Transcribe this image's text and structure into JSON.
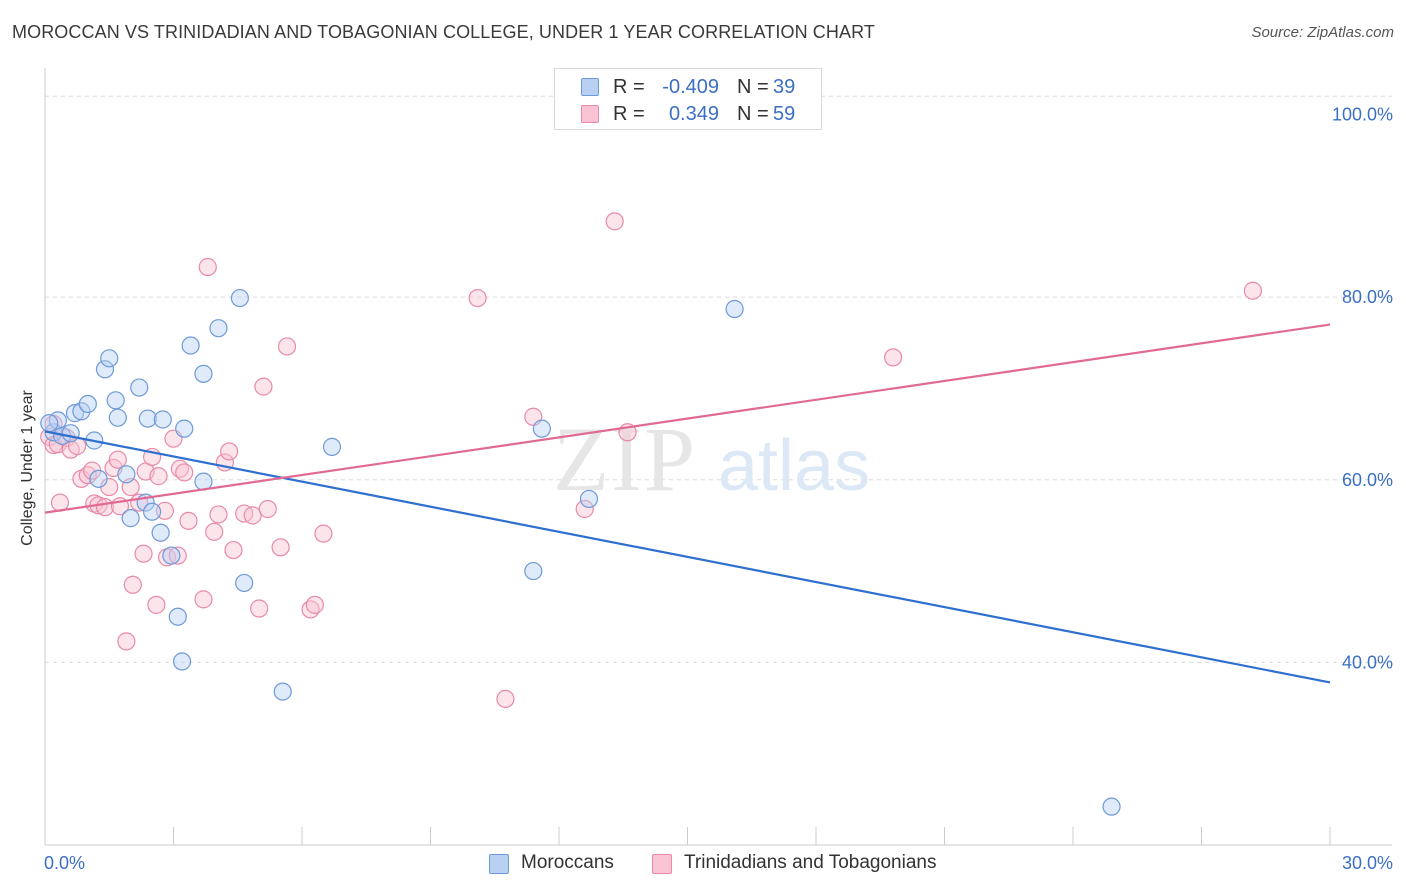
{
  "title": "MOROCCAN VS TRINIDADIAN AND TOBAGONIAN COLLEGE, UNDER 1 YEAR CORRELATION CHART",
  "source": "Source: ZipAtlas.com",
  "watermark": {
    "zip": "ZIP",
    "atlas": "atlas"
  },
  "colors": {
    "blue_fill": "#b8d1f3",
    "blue_stroke": "#6f9ad8",
    "blue_line": "#2f6fd0",
    "pink_fill": "#f9c3d3",
    "pink_stroke": "#e88aa8",
    "pink_line": "#e06a93",
    "axis_text": "#3b6fc4",
    "grid": "#dcdcdc"
  },
  "stats": [
    {
      "r_label": "R =",
      "r_value": "-0.409",
      "n_label": "N =",
      "n_value": "39",
      "swatch": "blue"
    },
    {
      "r_label": "R =",
      "r_value": "0.349",
      "n_label": "N =",
      "n_value": "59",
      "swatch": "pink"
    }
  ],
  "legend": [
    {
      "label": "Moroccans",
      "swatch": "blue"
    },
    {
      "label": "Trinidadians and Tobagonians",
      "swatch": "pink"
    }
  ],
  "chart_data": {
    "type": "scatter",
    "title": "MOROCCAN VS TRINIDADIAN AND TOBAGONIAN COLLEGE, UNDER 1 YEAR CORRELATION CHART",
    "xlabel": "",
    "ylabel": "College, Under 1 year",
    "xlim": [
      0,
      30
    ],
    "ylim": [
      20,
      104
    ],
    "x_tick_labels": [
      {
        "value": 0,
        "label": "0.0%"
      },
      {
        "value": 30,
        "label": "30.0%"
      }
    ],
    "y_tick_labels": [
      {
        "value": 40,
        "label": "40.0%"
      },
      {
        "value": 60,
        "label": "60.0%"
      },
      {
        "value": 80,
        "label": "80.0%"
      },
      {
        "value": 100,
        "label": "100.0%"
      }
    ],
    "gridlines_y": [
      40,
      60,
      80,
      102
    ],
    "series": [
      {
        "name": "Moroccans",
        "color": "blue",
        "trend": {
          "x": [
            0,
            30
          ],
          "y": [
            65.3,
            37.8
          ]
        },
        "points": [
          [
            0.2,
            65.2
          ],
          [
            0.3,
            66.5
          ],
          [
            0.4,
            64.8
          ],
          [
            0.6,
            65.1
          ],
          [
            0.7,
            67.3
          ],
          [
            0.85,
            67.5
          ],
          [
            1.0,
            68.3
          ],
          [
            1.15,
            64.3
          ],
          [
            1.25,
            60.1
          ],
          [
            1.4,
            72.1
          ],
          [
            1.5,
            73.3
          ],
          [
            1.65,
            68.7
          ],
          [
            1.7,
            66.8
          ],
          [
            1.9,
            60.6
          ],
          [
            2.0,
            55.8
          ],
          [
            2.2,
            70.1
          ],
          [
            2.35,
            57.5
          ],
          [
            2.4,
            66.7
          ],
          [
            2.5,
            56.5
          ],
          [
            2.7,
            54.2
          ],
          [
            2.75,
            66.6
          ],
          [
            2.95,
            51.7
          ],
          [
            3.1,
            45.0
          ],
          [
            3.2,
            40.1
          ],
          [
            3.25,
            65.6
          ],
          [
            3.4,
            74.7
          ],
          [
            3.7,
            71.6
          ],
          [
            3.7,
            59.8
          ],
          [
            4.05,
            76.6
          ],
          [
            4.55,
            79.9
          ],
          [
            4.65,
            48.7
          ],
          [
            5.55,
            36.8
          ],
          [
            6.7,
            63.6
          ],
          [
            11.4,
            50.0
          ],
          [
            11.6,
            65.6
          ],
          [
            12.7,
            57.9
          ],
          [
            16.1,
            78.7
          ],
          [
            24.9,
            24.2
          ],
          [
            0.1,
            66.2
          ]
        ]
      },
      {
        "name": "Trinidadians and Tobagonians",
        "color": "pink",
        "trend": {
          "x": [
            0,
            30
          ],
          "y": [
            56.4,
            77.0
          ]
        },
        "points": [
          [
            0.1,
            64.7
          ],
          [
            0.2,
            63.8
          ],
          [
            0.3,
            63.9
          ],
          [
            0.35,
            57.5
          ],
          [
            0.5,
            64.6
          ],
          [
            0.6,
            63.3
          ],
          [
            0.75,
            63.7
          ],
          [
            0.85,
            60.1
          ],
          [
            1.0,
            60.5
          ],
          [
            1.1,
            61.0
          ],
          [
            1.15,
            57.4
          ],
          [
            1.25,
            57.2
          ],
          [
            1.4,
            57.0
          ],
          [
            1.5,
            59.2
          ],
          [
            1.6,
            61.3
          ],
          [
            1.7,
            62.2
          ],
          [
            1.75,
            57.1
          ],
          [
            1.9,
            42.3
          ],
          [
            2.0,
            59.2
          ],
          [
            2.05,
            48.5
          ],
          [
            2.2,
            57.5
          ],
          [
            2.3,
            51.9
          ],
          [
            2.35,
            60.9
          ],
          [
            2.5,
            62.5
          ],
          [
            2.6,
            46.3
          ],
          [
            2.65,
            60.4
          ],
          [
            2.8,
            56.6
          ],
          [
            2.85,
            51.5
          ],
          [
            3.0,
            64.5
          ],
          [
            3.1,
            51.7
          ],
          [
            3.15,
            61.2
          ],
          [
            3.25,
            60.8
          ],
          [
            3.35,
            55.5
          ],
          [
            3.7,
            46.9
          ],
          [
            3.8,
            83.3
          ],
          [
            3.95,
            54.3
          ],
          [
            4.05,
            56.2
          ],
          [
            4.2,
            61.9
          ],
          [
            4.3,
            63.1
          ],
          [
            4.4,
            52.3
          ],
          [
            4.65,
            56.3
          ],
          [
            4.85,
            56.1
          ],
          [
            5.0,
            45.9
          ],
          [
            5.1,
            70.2
          ],
          [
            5.2,
            56.8
          ],
          [
            5.5,
            52.6
          ],
          [
            5.65,
            74.6
          ],
          [
            6.2,
            45.8
          ],
          [
            6.3,
            46.3
          ],
          [
            6.5,
            54.1
          ],
          [
            10.1,
            79.9
          ],
          [
            10.75,
            36.0
          ],
          [
            11.4,
            66.9
          ],
          [
            12.6,
            56.8
          ],
          [
            13.3,
            88.3
          ],
          [
            13.6,
            65.2
          ],
          [
            19.8,
            73.4
          ],
          [
            28.2,
            80.7
          ],
          [
            0.2,
            66.1
          ]
        ]
      }
    ]
  }
}
